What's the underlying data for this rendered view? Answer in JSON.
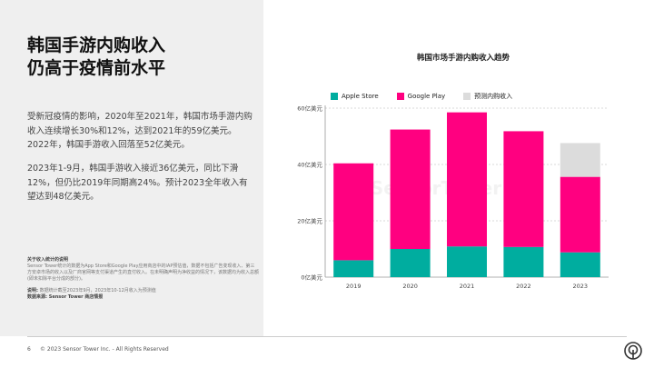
{
  "title_lines": [
    "韩国手游内购收入",
    "仍高于疫情前水平"
  ],
  "paragraph1": "受新冠疫情的影响，2020年至2021年，韩国市场手游内购收入连续增长30%和12%，达到2021年的59亿美元。2022年，韩国手游收入回落至52亿美元。",
  "paragraph2": "2023年1-9月，韩国手游收入接近36亿美元，同比下滑12%，但仍比2019年同期高24%。预计2023全年收入有望达到48亿美元。",
  "notes": {
    "heading": "关于收入统计的说明",
    "body": "Sensor Tower统计的数据为App Store和Google Play应用商店中的IAP预估值，数据不包括广告变现收入、第三方安卓市场的收入以及厂商官网等支付渠道产生的直付收入。在未明确声明为净收益的情况下，该数据均为收入总额(即未扣除平台分成的部分)。",
    "note_label": "说明:",
    "note_text": " 数据统计截至2023年9月，2023年10-12月收入为预测值",
    "source_label": "数据来源: Sensor Tower 商店情报"
  },
  "footer": {
    "page": "6",
    "copyright": "© 2023 Sensor Tower Inc. - All Rights Reserved"
  },
  "watermark": "SensorTower",
  "chart_data": {
    "type": "bar",
    "stacked": true,
    "title": "韩国市场手游内购收入趋势",
    "categories": [
      "2019",
      "2020",
      "2021",
      "2022",
      "2023"
    ],
    "series": [
      {
        "name": "Apple Store",
        "color": "#00ad9f",
        "values": [
          6.0,
          10.0,
          10.9,
          10.7,
          8.8
        ]
      },
      {
        "name": "Google Play",
        "color": "#ff0080",
        "values": [
          34.4,
          42.4,
          47.6,
          41.1,
          26.8
        ]
      },
      {
        "name": "预测内购收入",
        "color": "#dcdcdc",
        "values": [
          0,
          0,
          0,
          0,
          12.0
        ]
      }
    ],
    "yticks": [
      "0亿美元",
      "20亿美元",
      "40亿美元",
      "60亿美元"
    ],
    "ytick_values": [
      0,
      20,
      40,
      60
    ],
    "ylim": [
      0,
      60
    ],
    "grid": true,
    "legend": "top"
  }
}
